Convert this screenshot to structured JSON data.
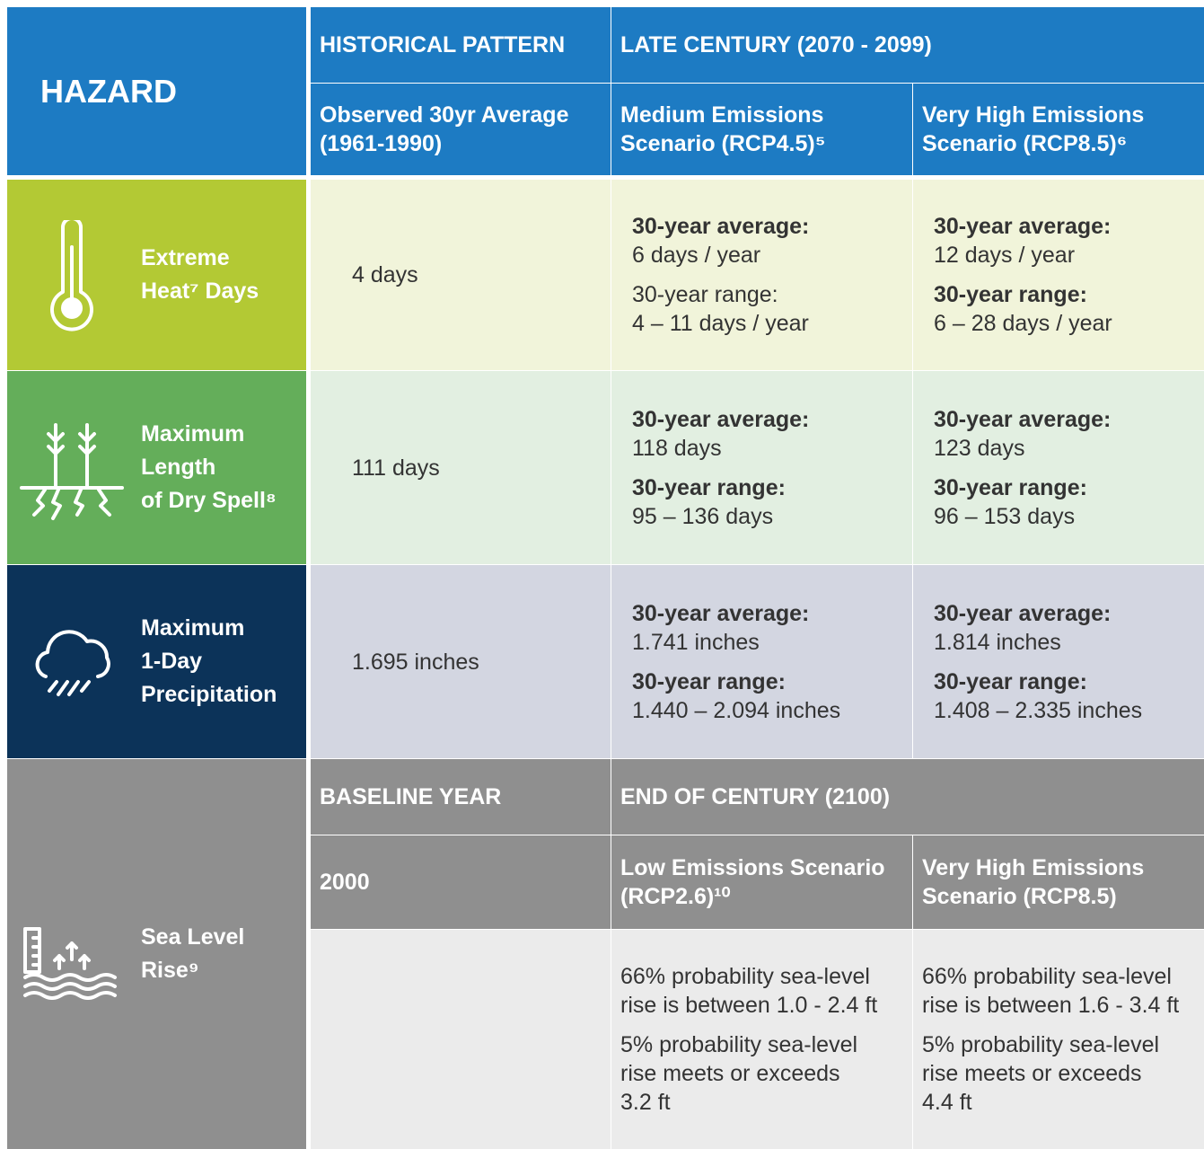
{
  "header": {
    "hazard": "HAZARD",
    "historical": "HISTORICAL PATTERN",
    "late": "LATE CENTURY (2070 - 2099)",
    "observed": [
      "Observed 30yr Average",
      "(1961-1990)"
    ],
    "medium": [
      "Medium Emissions",
      "Scenario (RCP4.5)⁵"
    ],
    "high": [
      "Very High Emissions",
      "Scenario (RCP8.5)⁶"
    ]
  },
  "rows": [
    {
      "name": [
        "Extreme",
        "Heat⁷ Days"
      ],
      "historical": "4 days",
      "medium": [
        {
          "label": "30-year average:",
          "value": "6 days / year",
          "bold": true
        },
        {
          "label": "30-year range:",
          "value": "4 – 11 days / year",
          "bold": false
        }
      ],
      "high": [
        {
          "label": "30-year average:",
          "value": "12 days / year",
          "bold": true
        },
        {
          "label": "30-year range:",
          "value": "6 – 28 days / year",
          "bold": true
        }
      ]
    },
    {
      "name": [
        "Maximum",
        "Length",
        "of Dry Spell⁸"
      ],
      "historical": "111 days",
      "medium": [
        {
          "label": "30-year average:",
          "value": "118 days",
          "bold": true
        },
        {
          "label": "30-year range:",
          "value": "95 – 136 days",
          "bold": true
        }
      ],
      "high": [
        {
          "label": "30-year average:",
          "value": "123 days",
          "bold": true
        },
        {
          "label": "30-year range:",
          "value": "96 – 153 days",
          "bold": true
        }
      ]
    },
    {
      "name": [
        "Maximum",
        "1-Day",
        "Precipitation"
      ],
      "historical": "1.695 inches",
      "medium": [
        {
          "label": "30-year average:",
          "value": "1.741 inches",
          "bold": true
        },
        {
          "label": "30-year range:",
          "value": "1.440 – 2.094 inches",
          "bold": true
        }
      ],
      "high": [
        {
          "label": "30-year average:",
          "value": "1.814 inches",
          "bold": true
        },
        {
          "label": "30-year range:",
          "value": "1.408 – 2.335 inches",
          "bold": true
        }
      ]
    }
  ],
  "sea": {
    "name": [
      "Sea Level",
      "Rise⁹"
    ],
    "baseline": "BASELINE YEAR",
    "end": "END OF CENTURY (2100)",
    "year": "2000",
    "low": [
      "Low Emissions Scenario",
      "(RCP2.6)¹⁰"
    ],
    "high": [
      "Very High Emissions",
      "Scenario (RCP8.5)"
    ],
    "low_text": [
      [
        "66% probability sea-level",
        "rise is between 1.0 - 2.4 ft"
      ],
      [
        "5% probability sea-level",
        "rise meets or exceeds",
        "3.2 ft"
      ]
    ],
    "high_text": [
      [
        "66% probability sea-level",
        "rise is between 1.6 - 3.4 ft"
      ],
      [
        "5% probability sea-level",
        "rise meets or exceeds",
        "4.4 ft"
      ]
    ]
  }
}
